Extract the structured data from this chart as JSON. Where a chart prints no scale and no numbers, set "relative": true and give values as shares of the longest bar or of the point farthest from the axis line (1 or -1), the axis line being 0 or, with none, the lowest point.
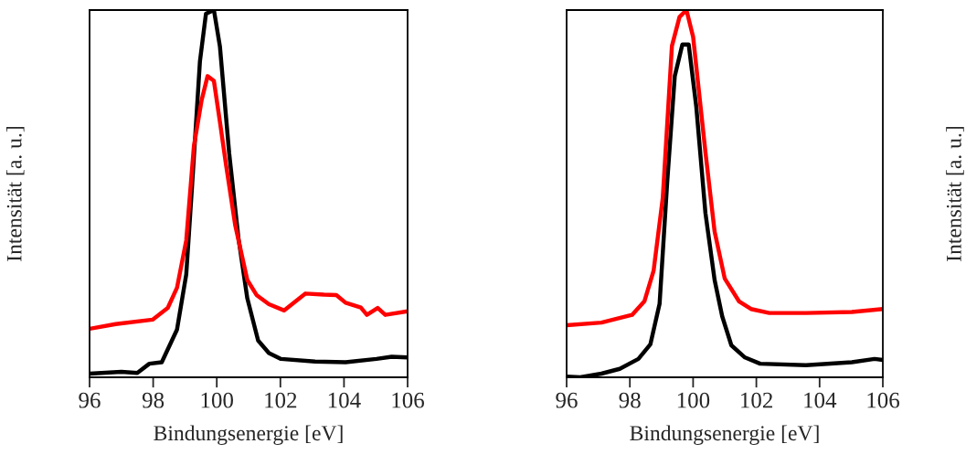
{
  "chart_data": [
    {
      "type": "line",
      "relative": true,
      "xlabel": "Bindungsenergie [eV]",
      "ylabel": "Intensität [a. u.]",
      "xlim": [
        96,
        106
      ],
      "xticks": [
        96,
        98,
        100,
        102,
        104,
        106
      ],
      "tick_labels": "x",
      "grid": false,
      "legend": false,
      "marker": "none",
      "line_style": "solid",
      "series": [
        {
          "color": "#000000",
          "x": [
            96.0,
            97.0,
            97.5,
            97.88,
            98.27,
            98.75,
            99.04,
            99.23,
            99.47,
            99.66,
            99.91,
            100.1,
            100.39,
            100.68,
            100.96,
            101.3,
            101.64,
            102.02,
            103.09,
            104.05,
            105.02,
            105.5,
            106.0
          ],
          "values": [
            0.01,
            0.015,
            0.012,
            0.037,
            0.041,
            0.13,
            0.28,
            0.53,
            0.86,
            0.99,
            1.0,
            0.9,
            0.61,
            0.38,
            0.215,
            0.1,
            0.066,
            0.05,
            0.043,
            0.041,
            0.05,
            0.056,
            0.054
          ]
        },
        {
          "color": "#ff0000",
          "x": [
            96.0,
            96.82,
            97.98,
            98.46,
            98.75,
            99.04,
            99.28,
            99.52,
            99.71,
            99.91,
            100.1,
            100.29,
            100.58,
            100.96,
            101.25,
            101.64,
            102.12,
            102.79,
            103.37,
            103.76,
            104.05,
            104.53,
            104.72,
            105.06,
            105.3,
            106.0
          ],
          "values": [
            0.132,
            0.145,
            0.157,
            0.189,
            0.244,
            0.373,
            0.629,
            0.753,
            0.82,
            0.807,
            0.695,
            0.579,
            0.414,
            0.265,
            0.224,
            0.199,
            0.182,
            0.228,
            0.225,
            0.224,
            0.203,
            0.19,
            0.17,
            0.189,
            0.17,
            0.18
          ]
        }
      ]
    },
    {
      "type": "line",
      "relative": true,
      "xlabel": "Bindungsenergie [eV]",
      "ylabel": "Intensität [a. u.]",
      "xlim": [
        96,
        106
      ],
      "xticks": [
        96,
        98,
        100,
        102,
        104,
        106
      ],
      "tick_labels": "x",
      "grid": false,
      "legend": false,
      "marker": "none",
      "line_style": "solid",
      "series": [
        {
          "color": "#000000",
          "x": [
            96.0,
            96.43,
            97.1,
            97.68,
            98.27,
            98.65,
            98.94,
            99.18,
            99.42,
            99.66,
            99.86,
            100.1,
            100.39,
            100.68,
            100.92,
            101.21,
            101.64,
            102.12,
            103.57,
            105.02,
            105.74,
            106.0
          ],
          "values": [
            0.002,
            0.0,
            0.01,
            0.023,
            0.05,
            0.09,
            0.2,
            0.53,
            0.82,
            0.906,
            0.906,
            0.737,
            0.447,
            0.265,
            0.166,
            0.087,
            0.054,
            0.037,
            0.033,
            0.041,
            0.05,
            0.047
          ]
        },
        {
          "color": "#ff0000",
          "x": [
            96.0,
            97.1,
            98.07,
            98.46,
            98.75,
            99.04,
            99.33,
            99.57,
            99.79,
            100.0,
            100.39,
            100.68,
            101.0,
            101.45,
            101.83,
            102.41,
            103.57,
            105.02,
            106.0
          ],
          "values": [
            0.142,
            0.149,
            0.17,
            0.207,
            0.29,
            0.488,
            0.902,
            0.981,
            1.0,
            0.927,
            0.613,
            0.397,
            0.269,
            0.207,
            0.186,
            0.175,
            0.175,
            0.178,
            0.186
          ]
        }
      ]
    }
  ]
}
